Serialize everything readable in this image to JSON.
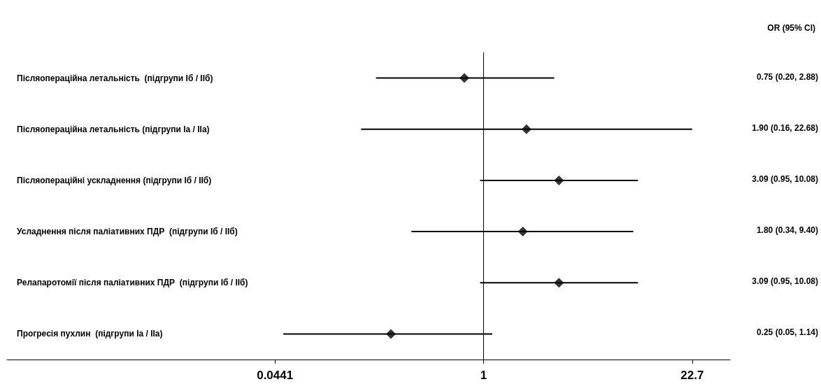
{
  "chart_data": {
    "type": "scatter",
    "orientation": "horizontal",
    "log": "x",
    "categories": [
      "Післяопераційна летальність  (підгрупи Іб / ІІб)",
      "Післяопераційна летальність (підгрупи Іа / ІІа)",
      "Післяопераційні ускладнення (підгрупи Іб / ІІб)",
      "Усладнення після паліативних ПДР  (підгрупи Іб / ІІб)",
      "Релапаротомії після паліативних ПДР  (підгрупи Іб / ІІб)",
      "Прогресія пухлин  (підгрупи Іа / ІІа)"
    ],
    "values": [
      0.75,
      1.9,
      3.09,
      1.8,
      3.09,
      0.25
    ],
    "errors": [
      [
        0.2,
        2.88
      ],
      [
        0.16,
        22.68
      ],
      [
        0.95,
        10.08
      ],
      [
        0.34,
        9.4
      ],
      [
        0.95,
        10.08
      ],
      [
        0.05,
        1.14
      ]
    ],
    "value_labels": [
      "0.75 (0.20, 2.88)",
      "1.90 (0.16, 22.68)",
      "3.09 (0.95, 10.08)",
      "1.80 (0.34, 9.40)",
      "3.09 (0.95, 10.08)",
      "0.25 (0.05, 1.14)"
    ],
    "color": "#000000",
    "marker": "diamond",
    "grid": false,
    "xlim": [
      0.0008,
      40
    ],
    "xticks": [
      0.0441,
      1,
      22.7
    ],
    "ref_lines": [
      {
        "axis": "x",
        "value": 1
      }
    ],
    "annotations": [
      "OR (95% CI)"
    ]
  }
}
